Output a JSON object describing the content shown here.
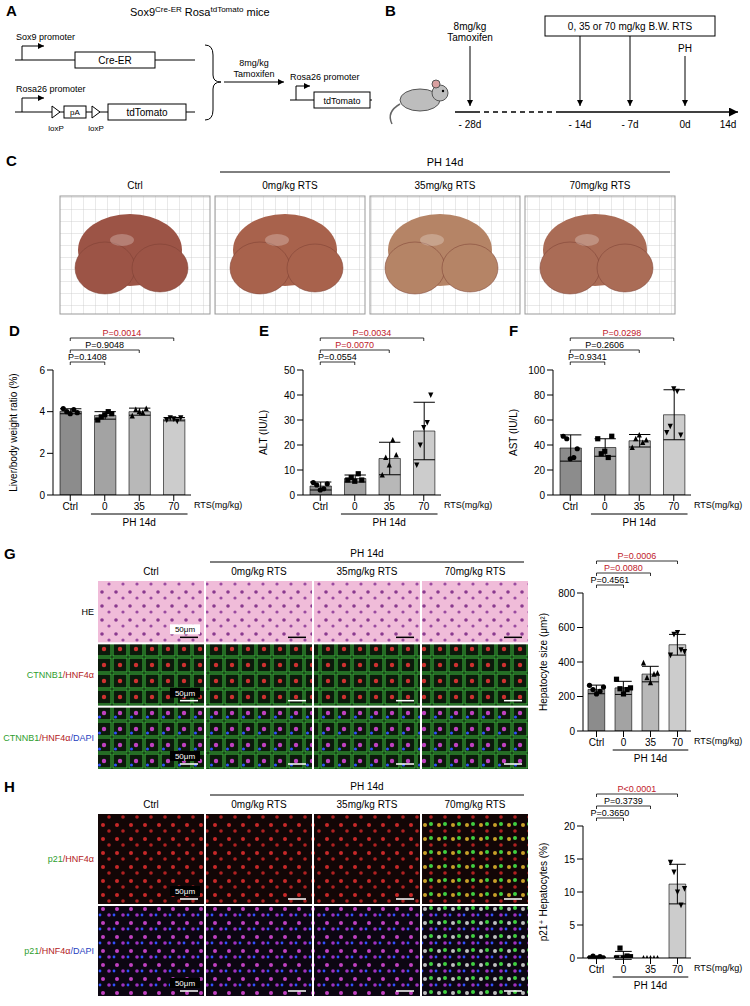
{
  "panel_A": {
    "letter": "A",
    "title": [
      "Sox9",
      "Cre-ER",
      " Rosa",
      "tdTomato",
      " mice"
    ],
    "construct_1": {
      "promoter": "Sox9 promoter",
      "gene": "Cre-ER"
    },
    "construct_2": {
      "promoter": "Rosa26 promoter",
      "stop": "pA",
      "sites": [
        "loxP",
        "loxP"
      ],
      "gene": "tdTomato"
    },
    "induction": "8mg/kg Tamoxifen",
    "result": {
      "promoter": "Rosa26 promoter",
      "gene": "tdTomato"
    }
  },
  "panel_B": {
    "letter": "B",
    "tamoxifen": "8mg/kg Tamoxifen",
    "treatment": "0, 35 or 70 mg/kg B.W. RTS",
    "surgery": "PH",
    "timepoints": [
      "- 28d",
      "- 14d",
      "- 7d",
      "0d",
      "14d"
    ]
  },
  "panel_C": {
    "letter": "C",
    "group_label": "PH 14d",
    "columns": [
      "Ctrl",
      "0mg/kg RTS",
      "35mg/kg RTS",
      "70mg/kg RTS"
    ]
  },
  "panel_G_images": {
    "letter": "G",
    "group_label": "PH 14d",
    "columns": [
      "Ctrl",
      "0mg/kg RTS",
      "35mg/kg RTS",
      "70mg/kg RTS"
    ],
    "rows": [
      "HE",
      "CTNNB1/HNF4α",
      "CTNNB1/HNF4α/DAPI"
    ],
    "scale_bar": "50μm"
  },
  "panel_H_images": {
    "letter": "H",
    "group_label": "PH 14d",
    "columns": [
      "Ctrl",
      "0mg/kg RTS",
      "35mg/kg RTS",
      "70mg/kg RTS"
    ],
    "rows": [
      "p21/HNF4α",
      "p21/HNF4α/DAPI"
    ],
    "scale_bar": "50μm"
  },
  "chart_data": [
    {
      "type": "bar",
      "panel": "D",
      "y_label": "Liver/body weight ratio (%)",
      "categories": [
        "Ctrl",
        "0",
        "35",
        "70"
      ],
      "values": [
        4.02,
        3.82,
        4.0,
        3.64
      ],
      "errors": [
        0.12,
        0.18,
        0.17,
        0.08
      ],
      "points": [
        [
          4.15,
          4.0,
          3.9,
          4.1,
          3.95
        ],
        [
          3.6,
          3.75,
          3.85,
          4.0,
          3.9
        ],
        [
          3.8,
          4.1,
          4.0,
          3.95,
          4.15
        ],
        [
          3.6,
          3.7,
          3.65,
          3.55,
          3.7
        ]
      ],
      "colors": [
        "#8c8c8c",
        "#a3a3a3",
        "#b8b8b8",
        "#cccccc"
      ],
      "ylim": [
        0,
        6
      ],
      "yticks": [
        0,
        2,
        4,
        6
      ],
      "comparisons": [
        {
          "from": "Ctrl",
          "to": "0",
          "label": "P=0.1408",
          "color": "#000000"
        },
        {
          "from": "Ctrl",
          "to": "35",
          "label": "P=0.9048",
          "color": "#000000"
        },
        {
          "from": "Ctrl",
          "to": "70",
          "label": "P=0.0014",
          "color": "#c0202a"
        }
      ],
      "x_unit_label": "RTS(mg/kg)",
      "x_group_label": "PH 14d"
    },
    {
      "type": "bar",
      "panel": "E",
      "y_label": "ALT (IU/L)",
      "categories": [
        "Ctrl",
        "0",
        "35",
        "70"
      ],
      "values": [
        3.6,
        6.6,
        14.6,
        25.6
      ],
      "errors": [
        1.6,
        1.4,
        6.5,
        11.5
      ],
      "points": [
        [
          5,
          4,
          2,
          2.5,
          4.5
        ],
        [
          6,
          7,
          5.5,
          8.5,
          6
        ],
        [
          8,
          15,
          12,
          22,
          16
        ],
        [
          12,
          20,
          27,
          29,
          40
        ]
      ],
      "colors": [
        "#8c8c8c",
        "#a3a3a3",
        "#b8b8b8",
        "#cccccc"
      ],
      "ylim": [
        0,
        50
      ],
      "yticks": [
        0,
        10,
        20,
        30,
        40,
        50
      ],
      "comparisons": [
        {
          "from": "Ctrl",
          "to": "0",
          "label": "P=0.0554",
          "color": "#000000"
        },
        {
          "from": "Ctrl",
          "to": "35",
          "label": "P=0.0070",
          "color": "#c0202a"
        },
        {
          "from": "Ctrl",
          "to": "70",
          "label": "P=0.0034",
          "color": "#c0202a"
        }
      ],
      "x_unit_label": "RTS(mg/kg)",
      "x_group_label": "PH 14d"
    },
    {
      "type": "bar",
      "panel": "F",
      "y_label": "AST (IU/L)",
      "categories": [
        "Ctrl",
        "0",
        "35",
        "70"
      ],
      "values": [
        37.6,
        38,
        43.4,
        64.2
      ],
      "errors": [
        10.5,
        7,
        5,
        20
      ],
      "points": [
        [
          47,
          45,
          29,
          30,
          37
        ],
        [
          45,
          33,
          35,
          30,
          47
        ],
        [
          38,
          45,
          48,
          42,
          44
        ],
        [
          50,
          55,
          85,
          83,
          48
        ]
      ],
      "colors": [
        "#8c8c8c",
        "#a3a3a3",
        "#b8b8b8",
        "#cccccc"
      ],
      "ylim": [
        0,
        100
      ],
      "yticks": [
        0,
        20,
        40,
        60,
        80,
        100
      ],
      "comparisons": [
        {
          "from": "Ctrl",
          "to": "0",
          "label": "P=0.9341",
          "color": "#000000"
        },
        {
          "from": "Ctrl",
          "to": "35",
          "label": "P=0.2606",
          "color": "#000000"
        },
        {
          "from": "Ctrl",
          "to": "70",
          "label": "P=0.0298",
          "color": "#c0202a"
        }
      ],
      "x_unit_label": "RTS(mg/kg)",
      "x_group_label": "PH 14d"
    },
    {
      "type": "bar",
      "y_label": "Hepatocyte size (μm²)",
      "categories": [
        "Ctrl",
        "0",
        "35",
        "70"
      ],
      "values": [
        241,
        250,
        330,
        500
      ],
      "errors": [
        25,
        38,
        45,
        60
      ],
      "points": [
        [
          265,
          240,
          215,
          230,
          255
        ],
        [
          300,
          245,
          215,
          240,
          250
        ],
        [
          395,
          310,
          280,
          330,
          335
        ],
        [
          440,
          560,
          570,
          470,
          460
        ]
      ],
      "colors": [
        "#8c8c8c",
        "#a3a3a3",
        "#b8b8b8",
        "#cccccc"
      ],
      "ylim": [
        0,
        800
      ],
      "yticks": [
        0,
        200,
        400,
        600,
        800
      ],
      "comparisons": [
        {
          "from": "Ctrl",
          "to": "0",
          "label": "P=0.4561",
          "color": "#000000"
        },
        {
          "from": "Ctrl",
          "to": "35",
          "label": "P=0.0080",
          "color": "#c0202a"
        },
        {
          "from": "Ctrl",
          "to": "70",
          "label": "P=0.0006",
          "color": "#c0202a"
        }
      ],
      "x_unit_label": "RTS(mg/kg)",
      "x_group_label": "PH 14d"
    },
    {
      "type": "bar",
      "y_label": "p21⁺ Hepatocytes (%)",
      "categories": [
        "Ctrl",
        "0",
        "35",
        "70"
      ],
      "values": [
        0.1,
        0.4,
        0,
        11.2
      ],
      "errors": [
        0.2,
        0.6,
        0,
        3
      ],
      "points": [
        [
          0,
          0.3,
          0,
          0.2,
          0
        ],
        [
          0,
          1.5,
          0,
          0.3,
          0.2
        ],
        [
          0,
          0,
          0,
          0,
          0
        ],
        [
          14.5,
          13,
          10,
          8,
          10.5
        ]
      ],
      "colors": [
        "#8c8c8c",
        "#a3a3a3",
        "#b8b8b8",
        "#cccccc"
      ],
      "ylim": [
        0,
        20
      ],
      "yticks": [
        0,
        5,
        10,
        15,
        20
      ],
      "comparisons": [
        {
          "from": "Ctrl",
          "to": "0",
          "label": "P=0.3650",
          "color": "#000000"
        },
        {
          "from": "Ctrl",
          "to": "35",
          "label": "P=0.3739",
          "color": "#000000"
        },
        {
          "from": "Ctrl",
          "to": "70",
          "label": "P<0.0001",
          "color": "#c0202a"
        }
      ],
      "x_unit_label": "RTS(mg/kg)",
      "x_group_label": "PH 14d"
    }
  ]
}
